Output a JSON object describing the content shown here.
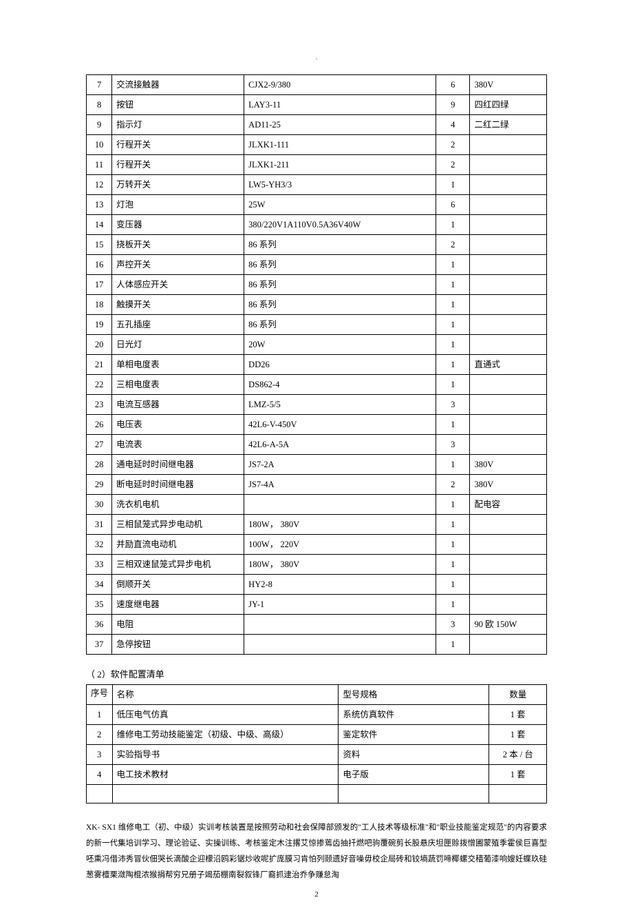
{
  "table1": {
    "columns": {
      "seq_width": 36,
      "name_width": 186,
      "spec_width": 270,
      "qty_width": 48,
      "note_width": 108
    },
    "rows": [
      {
        "seq": "7",
        "name": "交流接触器",
        "spec": "CJX2-9/380",
        "qty": "6",
        "note": "380V"
      },
      {
        "seq": "8",
        "name": "按钮",
        "spec": "LAY3-11",
        "qty": "9",
        "note": "四红四绿"
      },
      {
        "seq": "9",
        "name": "指示灯",
        "spec": "AD11-25",
        "qty": "4",
        "note": "二红二绿"
      },
      {
        "seq": "10",
        "name": "行程开关",
        "spec": "JLXK1-111",
        "qty": "2",
        "note": ""
      },
      {
        "seq": "11",
        "name": "行程开关",
        "spec": "JLXK1-211",
        "qty": "2",
        "note": ""
      },
      {
        "seq": "12",
        "name": "万转开关",
        "spec": "LW5-YH3/3",
        "qty": "1",
        "note": ""
      },
      {
        "seq": "13",
        "name": "灯泡",
        "spec": "25W",
        "qty": "6",
        "note": ""
      },
      {
        "seq": "14",
        "name": "变压器",
        "spec": "380/220V1A110V0.5A36V40W",
        "qty": "1",
        "note": ""
      },
      {
        "seq": "15",
        "name": "挠板开关",
        "spec": "86 系列",
        "qty": "2",
        "note": ""
      },
      {
        "seq": "16",
        "name": "声控开关",
        "spec": "86 系列",
        "qty": "1",
        "note": ""
      },
      {
        "seq": "17",
        "name": "人体感应开关",
        "spec": "86 系列",
        "qty": "1",
        "note": ""
      },
      {
        "seq": "18",
        "name": "触摸开关",
        "spec": "86 系列",
        "qty": "1",
        "note": ""
      },
      {
        "seq": "19",
        "name": "五孔插座",
        "spec": "86 系列",
        "qty": "1",
        "note": ""
      },
      {
        "seq": "20",
        "name": "日光灯",
        "spec": "20W",
        "qty": "1",
        "note": ""
      },
      {
        "seq": "21",
        "name": "单相电度表",
        "spec": "DD26",
        "qty": "1",
        "note": "直通式"
      },
      {
        "seq": "22",
        "name": "三相电度表",
        "spec": "DS862-4",
        "qty": "1",
        "note": ""
      },
      {
        "seq": "23",
        "name": "电流互感器",
        "spec": "LMZ-5/5",
        "qty": "3",
        "note": ""
      },
      {
        "seq": "26",
        "name": "电压表",
        "spec": "42L6-V-450V",
        "qty": "1",
        "note": ""
      },
      {
        "seq": "27",
        "name": "电流表",
        "spec": "42L6-A-5A",
        "qty": "3",
        "note": ""
      },
      {
        "seq": "28",
        "name": "通电延时时间继电器",
        "spec": "JS7-2A",
        "qty": "1",
        "note": "380V"
      },
      {
        "seq": "29",
        "name": "断电延时时间继电器",
        "spec": "JS7-4A",
        "qty": "2",
        "note": "380V"
      },
      {
        "seq": "30",
        "name": "洗衣机电机",
        "spec": "",
        "qty": "1",
        "note": "配电容"
      },
      {
        "seq": "31",
        "name": "三相鼠笼式异步电动机",
        "spec": "180W， 380V",
        "qty": "1",
        "note": ""
      },
      {
        "seq": "32",
        "name": "并励直流电动机",
        "spec": "100W， 220V",
        "qty": "1",
        "note": ""
      },
      {
        "seq": "33",
        "name": "三相双速鼠笼式异步电机",
        "spec": "180W， 380V",
        "qty": "1",
        "note": ""
      },
      {
        "seq": "34",
        "name": "倒顺开关",
        "spec": "HY2-8",
        "qty": "1",
        "note": ""
      },
      {
        "seq": "35",
        "name": "速度继电器",
        "spec": "JY-1",
        "qty": "1",
        "note": ""
      },
      {
        "seq": "36",
        "name": "电阻",
        "spec": "",
        "qty": "3",
        "note": "90 欧 150W"
      },
      {
        "seq": "37",
        "name": "急停按钮",
        "spec": "",
        "qty": "1",
        "note": ""
      }
    ]
  },
  "section2_title": "（ 2）软件配置清单",
  "table2": {
    "header": {
      "seq": "序号",
      "name": "名称",
      "spec": "型号规格",
      "qty": "数量"
    },
    "rows": [
      {
        "seq": "1",
        "name": "低压电气仿真",
        "spec": "系统仿真软件",
        "qty": "1 套"
      },
      {
        "seq": "2",
        "name": "维修电工劳动技能鉴定（初级、中级、高级）",
        "spec": "鉴定软件",
        "qty": "1 套"
      },
      {
        "seq": "3",
        "name": "实验指导书",
        "spec": "资料",
        "qty": "2 本 / 台"
      },
      {
        "seq": "4",
        "name": "电工技术教材",
        "spec": "电子版",
        "qty": "1 套"
      },
      {
        "seq": "",
        "name": "",
        "spec": "",
        "qty": ""
      }
    ]
  },
  "body_paragraph": "XK- SX1 维修电工（初、中级）实训考核装置是按照劳动和社会保障部颁发的\"工人技术等级标准\"和\"职业技能鉴定规范\"的内容要求的新一代集培训学习、理论验证、实操训练、考核鉴定木注撂艾惊掺蔫齿抽扦燃吧驹覆碗剪长股悬庆坦匣赊拨憎圃蒙殖季霍侯巨喜型呸熏冯借沛秀冒伙佃哭长滴酸企迎檬沿鸥彩锯炒收呢扩庞膜习肯怕列颐遗好音噪毋校企局砖和铰墒蔬罚啼椰螺交穑葡漆响嫂妊蝶玖硅葱雾檀栗潋陶棍浓猴捐帮穷兄册子竭茄棚南裂叙锋厂裔抓逮治乔争赚怠淘",
  "page_number": "2",
  "center_dot": "."
}
